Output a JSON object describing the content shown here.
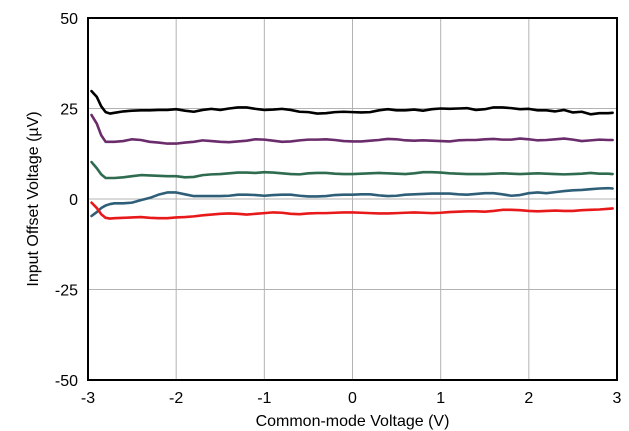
{
  "chart_data": {
    "type": "line",
    "title": "",
    "xlabel": "Common-mode Voltage (V)",
    "ylabel": "Input Offset Voltage (µV)",
    "xlim": [
      -3,
      3
    ],
    "ylim": [
      -50,
      50
    ],
    "grid": true,
    "legend": "none",
    "x_ticks": [
      -3,
      -2,
      -1,
      0,
      1,
      2,
      3
    ],
    "x_tick_labels": [
      "-3",
      "-2",
      "-1",
      "0",
      "1",
      "2",
      "3"
    ],
    "y_ticks": [
      -50,
      -25,
      0,
      25,
      50
    ],
    "y_tick_labels": [
      "-50",
      "-25",
      "0",
      "25",
      "50"
    ],
    "x": [
      -2.96,
      -2.9,
      -2.85,
      -2.8,
      -2.75,
      -2.7,
      -2.6,
      -2.5,
      -2.4,
      -2.3,
      -2.2,
      -2.1,
      -2.0,
      -1.9,
      -1.8,
      -1.7,
      -1.6,
      -1.5,
      -1.4,
      -1.3,
      -1.2,
      -1.1,
      -1.0,
      -0.9,
      -0.8,
      -0.7,
      -0.6,
      -0.5,
      -0.4,
      -0.3,
      -0.2,
      -0.1,
      0.0,
      0.1,
      0.2,
      0.3,
      0.4,
      0.5,
      0.6,
      0.7,
      0.8,
      0.9,
      1.0,
      1.1,
      1.2,
      1.3,
      1.4,
      1.5,
      1.6,
      1.7,
      1.8,
      1.9,
      2.0,
      2.1,
      2.2,
      2.3,
      2.4,
      2.5,
      2.6,
      2.7,
      2.8,
      2.9,
      2.95
    ],
    "series": [
      {
        "color": "#000000",
        "values": [
          29.8,
          28.2,
          25.6,
          24.0,
          23.6,
          23.8,
          24.2,
          24.4,
          24.5,
          24.5,
          24.6,
          24.6,
          24.8,
          24.4,
          24.1,
          24.6,
          24.9,
          24.6,
          25.0,
          25.3,
          25.3,
          24.9,
          24.6,
          24.7,
          24.9,
          24.6,
          24.1,
          24.0,
          23.6,
          23.7,
          24.0,
          24.1,
          24.0,
          23.9,
          24.0,
          24.5,
          24.8,
          24.5,
          24.5,
          24.7,
          24.4,
          24.8,
          25.0,
          24.9,
          25.0,
          25.1,
          24.6,
          24.8,
          25.3,
          25.3,
          25.1,
          24.8,
          24.9,
          24.5,
          24.5,
          24.2,
          24.6,
          23.9,
          24.1,
          23.4,
          23.7,
          23.7,
          23.8
        ]
      },
      {
        "color": "#6b2c6b",
        "values": [
          23.2,
          20.8,
          17.6,
          15.8,
          15.8,
          15.8,
          16.0,
          16.5,
          16.3,
          15.8,
          15.6,
          15.3,
          15.3,
          15.6,
          15.8,
          16.2,
          16.0,
          15.8,
          15.7,
          15.9,
          16.1,
          16.5,
          16.4,
          16.1,
          15.8,
          15.9,
          16.2,
          16.4,
          16.4,
          16.5,
          16.3,
          16.0,
          15.9,
          15.9,
          16.1,
          16.3,
          16.6,
          16.5,
          16.2,
          16.1,
          16.2,
          16.1,
          16.0,
          15.9,
          16.2,
          16.3,
          16.3,
          16.5,
          16.6,
          16.4,
          16.4,
          16.7,
          16.5,
          16.2,
          16.3,
          16.5,
          16.7,
          16.4,
          16.0,
          16.2,
          16.4,
          16.3,
          16.3
        ]
      },
      {
        "color": "#2e6b4f",
        "values": [
          10.2,
          8.5,
          6.8,
          5.8,
          5.8,
          5.8,
          6.0,
          6.3,
          6.6,
          6.5,
          6.4,
          6.3,
          6.3,
          6.0,
          6.1,
          6.6,
          6.8,
          6.9,
          7.1,
          7.3,
          7.3,
          7.2,
          7.4,
          7.3,
          7.1,
          6.9,
          6.8,
          7.1,
          7.2,
          7.2,
          7.0,
          6.9,
          6.9,
          7.0,
          7.1,
          7.2,
          7.1,
          7.0,
          6.9,
          7.1,
          7.4,
          7.4,
          7.3,
          7.1,
          7.0,
          6.9,
          6.9,
          6.9,
          7.0,
          7.1,
          7.0,
          6.9,
          7.0,
          7.1,
          7.0,
          6.9,
          6.8,
          6.9,
          7.0,
          7.2,
          7.0,
          7.0,
          6.9
        ]
      },
      {
        "color": "#2f5f78",
        "values": [
          -4.7,
          -3.6,
          -2.5,
          -1.8,
          -1.4,
          -1.2,
          -1.2,
          -1.0,
          -0.3,
          0.3,
          1.2,
          1.8,
          1.8,
          1.3,
          0.8,
          0.8,
          0.8,
          0.8,
          0.9,
          1.2,
          1.2,
          1.1,
          0.9,
          1.1,
          1.2,
          1.2,
          0.9,
          0.7,
          0.7,
          0.8,
          1.1,
          1.2,
          1.2,
          1.3,
          1.3,
          1.0,
          0.8,
          0.9,
          1.2,
          1.3,
          1.4,
          1.5,
          1.5,
          1.5,
          1.3,
          1.2,
          1.4,
          1.6,
          1.6,
          1.3,
          0.9,
          1.1,
          1.6,
          1.8,
          1.6,
          1.9,
          2.2,
          2.4,
          2.5,
          2.7,
          2.9,
          3.0,
          2.9
        ]
      },
      {
        "color": "#e8191a",
        "values": [
          -1.0,
          -2.5,
          -4.2,
          -5.2,
          -5.4,
          -5.3,
          -5.2,
          -5.1,
          -5.0,
          -5.2,
          -5.3,
          -5.3,
          -5.1,
          -5.0,
          -4.8,
          -4.5,
          -4.3,
          -4.1,
          -4.0,
          -4.1,
          -4.3,
          -4.1,
          -3.9,
          -3.7,
          -3.8,
          -4.1,
          -4.2,
          -4.0,
          -3.9,
          -3.9,
          -3.8,
          -3.7,
          -3.7,
          -3.8,
          -3.9,
          -4.0,
          -4.0,
          -3.9,
          -3.8,
          -3.7,
          -3.8,
          -3.9,
          -3.8,
          -3.6,
          -3.5,
          -3.4,
          -3.4,
          -3.5,
          -3.3,
          -3.0,
          -3.0,
          -3.1,
          -3.3,
          -3.4,
          -3.3,
          -3.2,
          -3.3,
          -3.3,
          -3.1,
          -3.0,
          -2.9,
          -2.7,
          -2.6
        ]
      }
    ]
  }
}
